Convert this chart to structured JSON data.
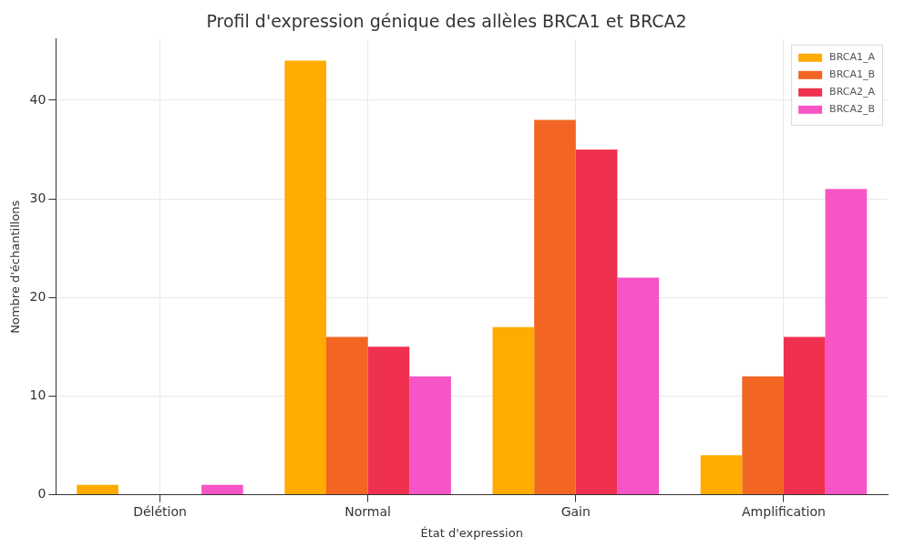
{
  "chart_data": {
    "type": "bar",
    "title": "Profil d'expression génique des allèles BRCA1 et BRCA2",
    "xlabel": "État d'expression",
    "ylabel": "Nombre d'échantillons",
    "categories": [
      "Délétion",
      "Normal",
      "Gain",
      "Amplification"
    ],
    "series": [
      {
        "name": "BRCA1_A",
        "color": "#ffab00",
        "values": [
          1,
          44,
          17,
          4
        ]
      },
      {
        "name": "BRCA1_B",
        "color": "#f26522",
        "values": [
          0,
          16,
          38,
          12
        ]
      },
      {
        "name": "BRCA2_A",
        "color": "#f0304f",
        "values": [
          0,
          15,
          35,
          16
        ]
      },
      {
        "name": "BRCA2_B",
        "color": "#f754c6",
        "values": [
          1,
          12,
          22,
          31
        ]
      }
    ],
    "ylim": [
      0,
      46.2
    ],
    "yticks": [
      0,
      10,
      20,
      30,
      40
    ],
    "grid": true,
    "legend": "top right"
  }
}
